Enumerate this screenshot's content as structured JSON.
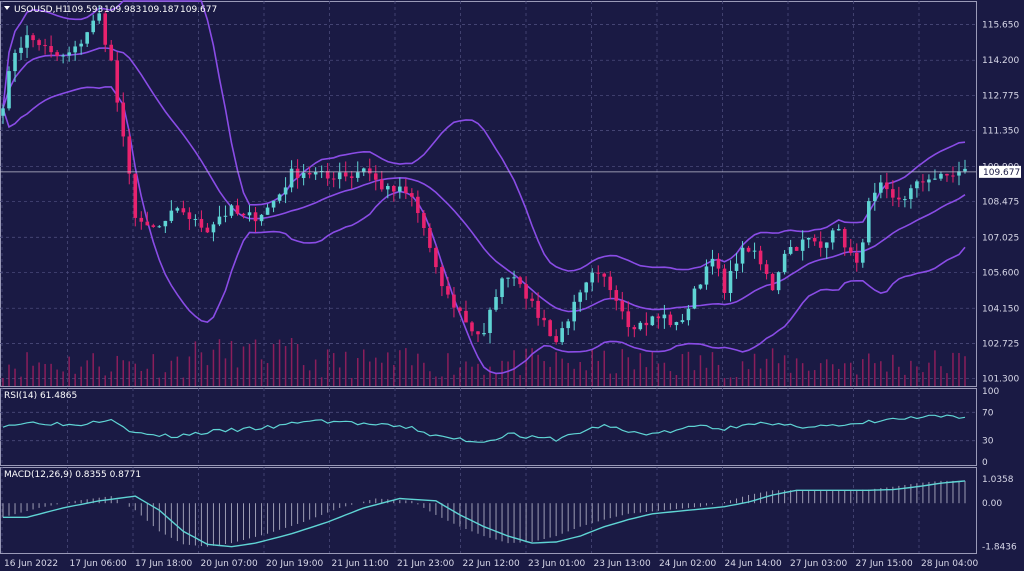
{
  "header": {
    "symbol": "USOUSD,H1",
    "open": "109.593",
    "high": "109.983",
    "low": "109.187",
    "close": "109.677"
  },
  "current_price": "109.677",
  "colors": {
    "background": "#1a1a44",
    "grid": "#4a4a7a",
    "bull": "#5fd4d4",
    "bear": "#e8226e",
    "bands": "#8a4ce6",
    "rsi_line": "#5fd4d4",
    "macd_line": "#5fd4d4",
    "macd_hist": "#c8c8d8",
    "volume": "#e8226e"
  },
  "chart_data": [
    {
      "type": "candlestick",
      "name": "price",
      "yticks": [
        "115.650",
        "114.200",
        "112.775",
        "111.350",
        "109.900",
        "108.475",
        "107.025",
        "105.600",
        "104.150",
        "102.725",
        "101.300"
      ],
      "ylim": [
        101.0,
        116.6
      ],
      "xticks": [
        "16 Jun 2022",
        "17 Jun 06:00",
        "17 Jun 18:00",
        "20 Jun 07:00",
        "20 Jun 19:00",
        "21 Jun 11:00",
        "21 Jun 23:00",
        "22 Jun 12:00",
        "23 Jun 01:00",
        "23 Jun 13:00",
        "24 Jun 02:00",
        "24 Jun 14:00",
        "27 Jun 03:00",
        "27 Jun 15:00",
        "28 Jun 04:00"
      ],
      "anchors": [
        [
          0,
          112.5
        ],
        [
          2,
          114.6
        ],
        [
          4,
          115.1
        ],
        [
          6,
          114.9
        ],
        [
          8,
          114.4
        ],
        [
          10,
          114.3
        ],
        [
          12,
          114.6
        ],
        [
          14,
          115.4
        ],
        [
          16,
          116.0
        ],
        [
          18,
          114.1
        ],
        [
          20,
          110.9
        ],
        [
          22,
          108.0
        ],
        [
          24,
          107.3
        ],
        [
          26,
          107.4
        ],
        [
          28,
          107.9
        ],
        [
          30,
          108.1
        ],
        [
          32,
          107.6
        ],
        [
          34,
          107.4
        ],
        [
          36,
          107.9
        ],
        [
          38,
          108.1
        ],
        [
          40,
          107.8
        ],
        [
          42,
          107.9
        ],
        [
          44,
          108.2
        ],
        [
          46,
          108.8
        ],
        [
          48,
          109.6
        ],
        [
          50,
          109.7
        ],
        [
          52,
          109.6
        ],
        [
          54,
          109.4
        ],
        [
          56,
          109.7
        ],
        [
          58,
          109.5
        ],
        [
          60,
          109.9
        ],
        [
          62,
          109.3
        ],
        [
          64,
          108.9
        ],
        [
          66,
          108.9
        ],
        [
          68,
          108.6
        ],
        [
          70,
          107.4
        ],
        [
          72,
          105.6
        ],
        [
          74,
          104.6
        ],
        [
          76,
          104.0
        ],
        [
          78,
          103.3
        ],
        [
          80,
          103.0
        ],
        [
          82,
          104.8
        ],
        [
          84,
          105.6
        ],
        [
          86,
          105.3
        ],
        [
          88,
          104.2
        ],
        [
          90,
          103.6
        ],
        [
          92,
          102.8
        ],
        [
          94,
          103.8
        ],
        [
          96,
          104.6
        ],
        [
          98,
          105.4
        ],
        [
          100,
          105.3
        ],
        [
          102,
          104.7
        ],
        [
          104,
          103.6
        ],
        [
          106,
          103.5
        ],
        [
          108,
          103.7
        ],
        [
          110,
          103.8
        ],
        [
          112,
          103.4
        ],
        [
          114,
          104.2
        ],
        [
          116,
          105.3
        ],
        [
          118,
          106.4
        ],
        [
          120,
          104.7
        ],
        [
          122,
          106.2
        ],
        [
          124,
          106.6
        ],
        [
          126,
          105.9
        ],
        [
          128,
          105.0
        ],
        [
          130,
          106.5
        ],
        [
          132,
          106.7
        ],
        [
          134,
          106.9
        ],
        [
          136,
          106.6
        ],
        [
          138,
          107.5
        ],
        [
          140,
          106.8
        ],
        [
          142,
          105.8
        ],
        [
          144,
          108.3
        ],
        [
          146,
          109.0
        ],
        [
          148,
          108.5
        ],
        [
          150,
          108.7
        ],
        [
          152,
          109.1
        ],
        [
          154,
          109.5
        ],
        [
          156,
          109.4
        ],
        [
          158,
          109.6
        ],
        [
          160,
          109.68
        ]
      ],
      "candle_count": 161,
      "seed": 7
    },
    {
      "type": "bar",
      "name": "volume",
      "note": "tick volume histogram in price pane",
      "seed": 11
    },
    {
      "type": "line",
      "name": "RSI",
      "title": "RSI(14) 61.4865",
      "yticks": [
        "100",
        "70",
        "30",
        "0"
      ],
      "ylim": [
        0,
        100
      ],
      "anchors": [
        [
          0,
          52
        ],
        [
          6,
          56
        ],
        [
          12,
          52
        ],
        [
          18,
          62
        ],
        [
          22,
          40
        ],
        [
          28,
          36
        ],
        [
          34,
          42
        ],
        [
          40,
          46
        ],
        [
          46,
          50
        ],
        [
          50,
          58
        ],
        [
          56,
          57
        ],
        [
          62,
          52
        ],
        [
          68,
          48
        ],
        [
          72,
          36
        ],
        [
          76,
          32
        ],
        [
          80,
          28
        ],
        [
          84,
          40
        ],
        [
          88,
          34
        ],
        [
          92,
          32
        ],
        [
          96,
          42
        ],
        [
          100,
          52
        ],
        [
          104,
          42
        ],
        [
          108,
          40
        ],
        [
          112,
          44
        ],
        [
          116,
          52
        ],
        [
          120,
          46
        ],
        [
          124,
          56
        ],
        [
          128,
          52
        ],
        [
          132,
          50
        ],
        [
          136,
          52
        ],
        [
          140,
          50
        ],
        [
          144,
          56
        ],
        [
          148,
          60
        ],
        [
          152,
          62
        ],
        [
          156,
          64
        ],
        [
          160,
          61.5
        ]
      ]
    },
    {
      "type": "line",
      "name": "MACD",
      "title": "MACD(12,26,9) 0.8355 0.8771",
      "yticks": [
        "1.0358",
        "0.00",
        "-1.8436"
      ],
      "ylim": [
        -1.95,
        1.2
      ],
      "anchors": [
        [
          0,
          -0.6
        ],
        [
          6,
          -0.2
        ],
        [
          12,
          0.1
        ],
        [
          18,
          0.3
        ],
        [
          22,
          -0.3
        ],
        [
          26,
          -1.2
        ],
        [
          30,
          -1.75
        ],
        [
          34,
          -1.85
        ],
        [
          38,
          -1.7
        ],
        [
          44,
          -1.3
        ],
        [
          50,
          -0.8
        ],
        [
          56,
          -0.2
        ],
        [
          62,
          0.2
        ],
        [
          68,
          0.1
        ],
        [
          72,
          -0.5
        ],
        [
          76,
          -1.0
        ],
        [
          80,
          -1.4
        ],
        [
          84,
          -1.7
        ],
        [
          88,
          -1.65
        ],
        [
          92,
          -1.4
        ],
        [
          96,
          -1.0
        ],
        [
          100,
          -0.7
        ],
        [
          104,
          -0.45
        ],
        [
          110,
          -0.3
        ],
        [
          116,
          -0.15
        ],
        [
          120,
          0.05
        ],
        [
          124,
          0.35
        ],
        [
          128,
          0.55
        ],
        [
          132,
          0.55
        ],
        [
          136,
          0.55
        ],
        [
          140,
          0.55
        ],
        [
          144,
          0.58
        ],
        [
          148,
          0.7
        ],
        [
          152,
          0.85
        ],
        [
          156,
          0.95
        ],
        [
          160,
          0.95
        ]
      ]
    }
  ]
}
